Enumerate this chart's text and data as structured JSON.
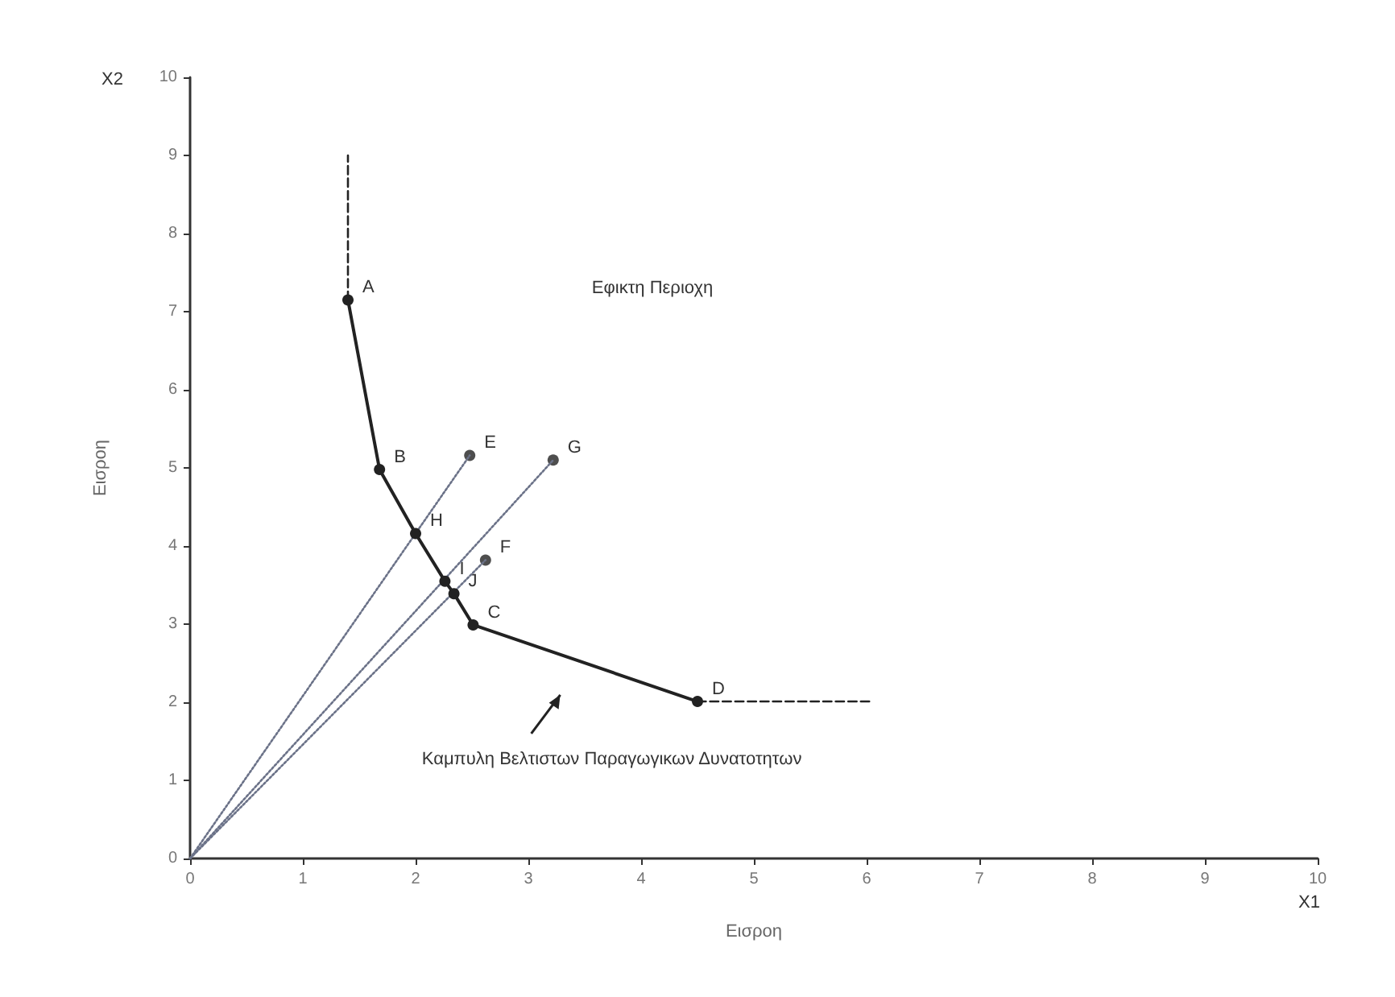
{
  "chart_data": {
    "type": "line",
    "xlabel": "Εισροη",
    "ylabel": "Εισροη",
    "xlim": [
      0,
      10
    ],
    "xticks": [
      0,
      1,
      2,
      3,
      4,
      5,
      6,
      7,
      8,
      9,
      10
    ],
    "ylim": [
      0,
      10
    ],
    "yticks": [
      0,
      1,
      2,
      3,
      4,
      5,
      6,
      7,
      8,
      9,
      10
    ],
    "grid": false,
    "series": [
      {
        "type": "line",
        "color": "#6b7288",
        "line_style": "dotted",
        "marker": "none",
        "x": [
          0,
          2.48
        ],
        "values": [
          0,
          5.16
        ]
      },
      {
        "type": "line",
        "color": "#6b7288",
        "line_style": "dotted",
        "marker": "none",
        "x": [
          0,
          3.22
        ],
        "values": [
          0,
          5.1
        ]
      },
      {
        "type": "line",
        "color": "#6b7288",
        "line_style": "dotted",
        "marker": "none",
        "x": [
          0,
          2.62
        ],
        "values": [
          0,
          3.82
        ]
      },
      {
        "color": "#222222",
        "line_style": "dashed",
        "x": [
          1.4,
          1.4
        ],
        "values": [
          7.15,
          9.0
        ]
      },
      {
        "color": "#222222",
        "line_style": "dashed",
        "x": [
          4.5,
          6.03
        ],
        "values": [
          2.01,
          2.01
        ]
      },
      {
        "color": "#222222",
        "line_style": "solid",
        "marker": "circle",
        "x": [
          1.4,
          1.68,
          2.0,
          2.26,
          2.34,
          2.51,
          4.5
        ],
        "values": [
          7.15,
          4.98,
          4.16,
          3.55,
          3.39,
          2.99,
          2.01
        ]
      },
      {
        "type": "scatter",
        "color": "#222222",
        "marker": "circle",
        "x": [
          2.48,
          3.22,
          2.62
        ],
        "values": [
          5.16,
          5.1,
          3.82
        ]
      }
    ],
    "annotations": [
      "X2",
      "X1",
      {
        "text": "A",
        "x": 1.4,
        "y": 7.15
      },
      {
        "text": "B",
        "x": 1.68,
        "y": 4.98
      },
      {
        "text": "H",
        "x": 2.0,
        "y": 4.16
      },
      {
        "text": "I",
        "x": 2.26,
        "y": 3.55
      },
      {
        "text": "J",
        "x": 2.34,
        "y": 3.39
      },
      {
        "text": "C",
        "x": 2.51,
        "y": 2.99
      },
      {
        "text": "D",
        "x": 4.5,
        "y": 2.01
      },
      {
        "text": "E",
        "x": 2.48,
        "y": 5.16
      },
      {
        "text": "G",
        "x": 3.22,
        "y": 5.1
      },
      {
        "text": "F",
        "x": 2.62,
        "y": 3.82
      },
      "Εφικτη Περιοχη",
      "Καμπυλη Βελτιστων Παραγωγικων Δυνατοτητων"
    ]
  }
}
